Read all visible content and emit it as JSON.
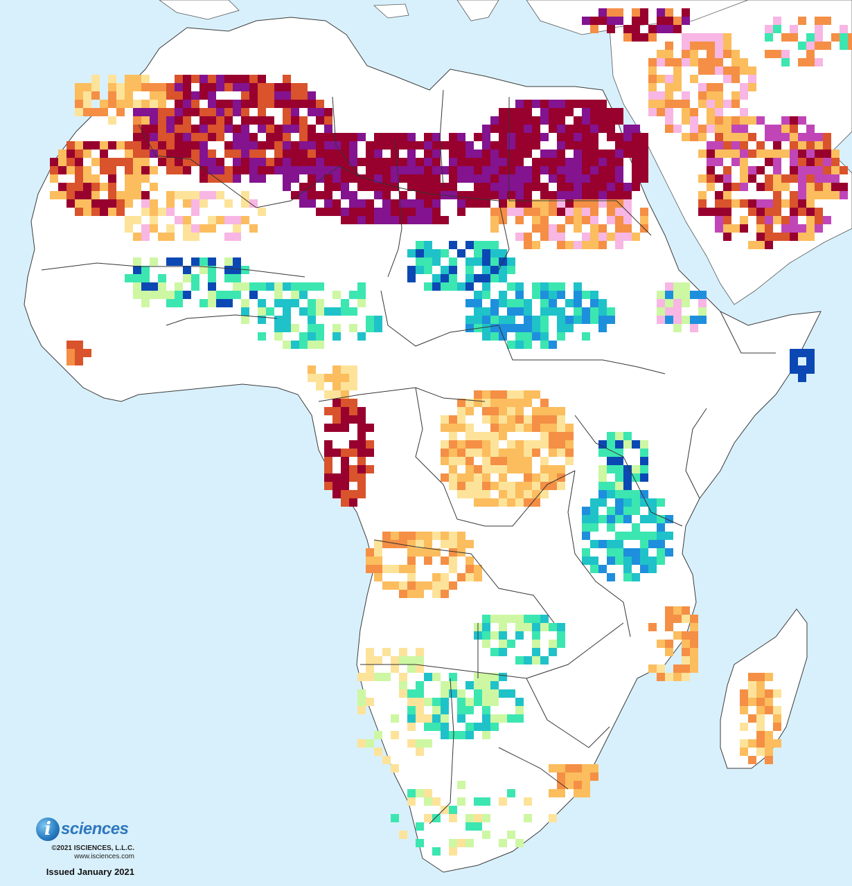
{
  "footer": {
    "logo_letter": "i",
    "logo_name": "sciences",
    "copyright": "©2021 ISCIENCES, L.L.C.",
    "website": "www.isciences.com",
    "issued": "Issued January 2021"
  },
  "colors": {
    "ocean": "#d8f0fb",
    "land": "#ffffff",
    "border": "#3a3a3a",
    "deficit_mild": "#fde39a",
    "deficit_moderate": "#fbbd5e",
    "deficit_severe": "#f48f45",
    "deficit_extreme": "#d9532c",
    "deficit_exceptional": "#98002e",
    "both_mild": "#f7b6e3",
    "both_strong": "#c046b8",
    "both_extreme": "#83138f",
    "surplus_mild": "#cdf7a2",
    "surplus_moderate": "#3ce6b1",
    "surplus_severe": "#1fc2c9",
    "surplus_extreme": "#1e8fdc",
    "surplus_exceptional": "#0b48b4"
  }
}
